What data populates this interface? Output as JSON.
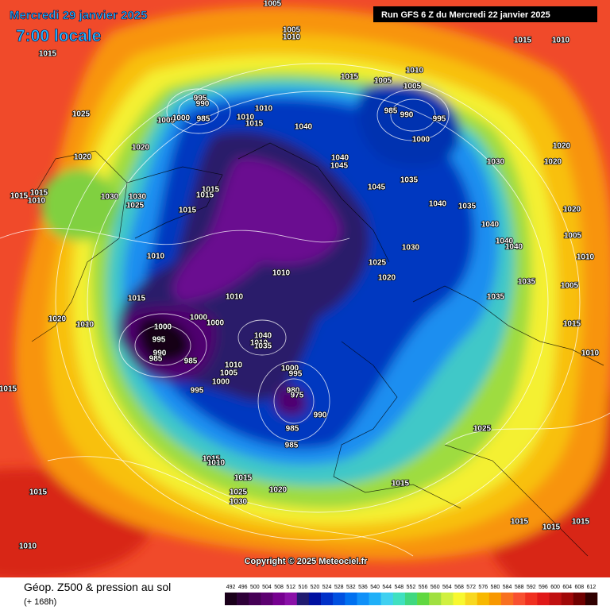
{
  "header": {
    "date": "Mercredi 29 janvier 2025",
    "time": "7:00 locale",
    "run": "Run GFS 6 Z du Mercredi 22 janvier 2025"
  },
  "copyright": "Copyright © 2025 Meteociel.fr",
  "footer": {
    "title": "Géop. Z500 & pression au sol",
    "subtitle": "(+ 168h)"
  },
  "legend": {
    "levels": [
      492,
      496,
      500,
      504,
      508,
      512,
      516,
      520,
      524,
      528,
      532,
      536,
      540,
      544,
      548,
      552,
      556,
      560,
      564,
      568,
      572,
      576,
      580,
      584,
      588,
      592,
      596,
      600,
      604,
      608,
      612
    ],
    "colors": [
      "#1a001a",
      "#2e0038",
      "#450055",
      "#5c0070",
      "#760090",
      "#8a10a8",
      "#201a70",
      "#0010a0",
      "#0030c8",
      "#0050e0",
      "#0070f0",
      "#1090f8",
      "#20b0f8",
      "#40d0f0",
      "#40e0c0",
      "#40d880",
      "#60d840",
      "#a0e040",
      "#d0f040",
      "#f8f830",
      "#f8d820",
      "#f8b800",
      "#f89800",
      "#f87020",
      "#f85030",
      "#f03020",
      "#e01818",
      "#c01010",
      "#a00808",
      "#700000",
      "#300000"
    ]
  },
  "pressure_labels": [
    1005,
    1005,
    1010,
    1015,
    1015,
    1010,
    1025,
    1020,
    1020,
    1015,
    1015,
    1010,
    1030,
    1030,
    1025,
    995,
    990,
    1005,
    1000,
    985,
    1010,
    1010,
    1015,
    1040,
    1015,
    1005,
    1010,
    1005,
    985,
    990,
    995,
    1000,
    1020,
    1020,
    1030,
    1040,
    1045,
    1045,
    1035,
    1040,
    1035,
    1040,
    1040,
    1040,
    1020,
    1005,
    1010,
    1035,
    1005,
    1035,
    1015,
    1010,
    1015,
    1015,
    1015,
    1010,
    1025,
    1030,
    1020,
    1010,
    1010,
    1015,
    1020,
    1010,
    1000,
    1000,
    1000,
    995,
    990,
    985,
    985,
    1010,
    1040,
    1035,
    1010,
    1005,
    1000,
    995,
    1000,
    995,
    980,
    975,
    990,
    985,
    985,
    1015,
    1025,
    1015,
    1010,
    1015,
    1025,
    1030,
    1020,
    1015,
    1015,
    1015,
    1015,
    1015,
    1010
  ]
}
